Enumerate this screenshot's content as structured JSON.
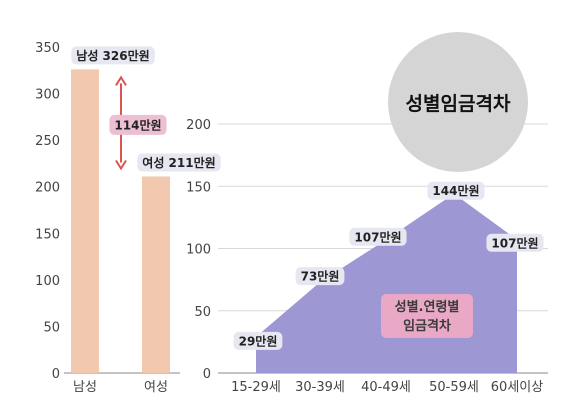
{
  "chart_data": [
    {
      "type": "bar",
      "categories": [
        "남성",
        "여성"
      ],
      "values": [
        326,
        211
      ],
      "data_labels": [
        "남성 326만원",
        "여성 211만원"
      ],
      "difference_label": "114만원",
      "ylim": [
        0,
        350
      ],
      "yticks": [
        0,
        50,
        100,
        150,
        200,
        250,
        300,
        350
      ],
      "grid": false
    },
    {
      "type": "area",
      "categories": [
        "15-29세",
        "30-39세",
        "40-49세",
        "50-59세",
        "60세이상"
      ],
      "values": [
        29,
        73,
        107,
        144,
        107
      ],
      "data_labels": [
        "29만원",
        "73만원",
        "107만원",
        "144만원",
        "107만원"
      ],
      "title": "성별임금격차",
      "annotation": [
        "성별.연령별",
        "임금격차"
      ],
      "ylim": [
        0,
        200
      ],
      "yticks": [
        0,
        50,
        100,
        150,
        200
      ],
      "grid": true
    }
  ],
  "colors": {
    "bar": "#f2c8ae",
    "area": "#9d97d4",
    "arrow": "#d9534f",
    "label_bg": "#e6e7f1",
    "diff_bg": "#ecc0d2",
    "annotation_bg": "#e9a9c6",
    "title_circle": "#d5d5d5",
    "grid": "#d8d8d8",
    "axis": "#888888"
  }
}
